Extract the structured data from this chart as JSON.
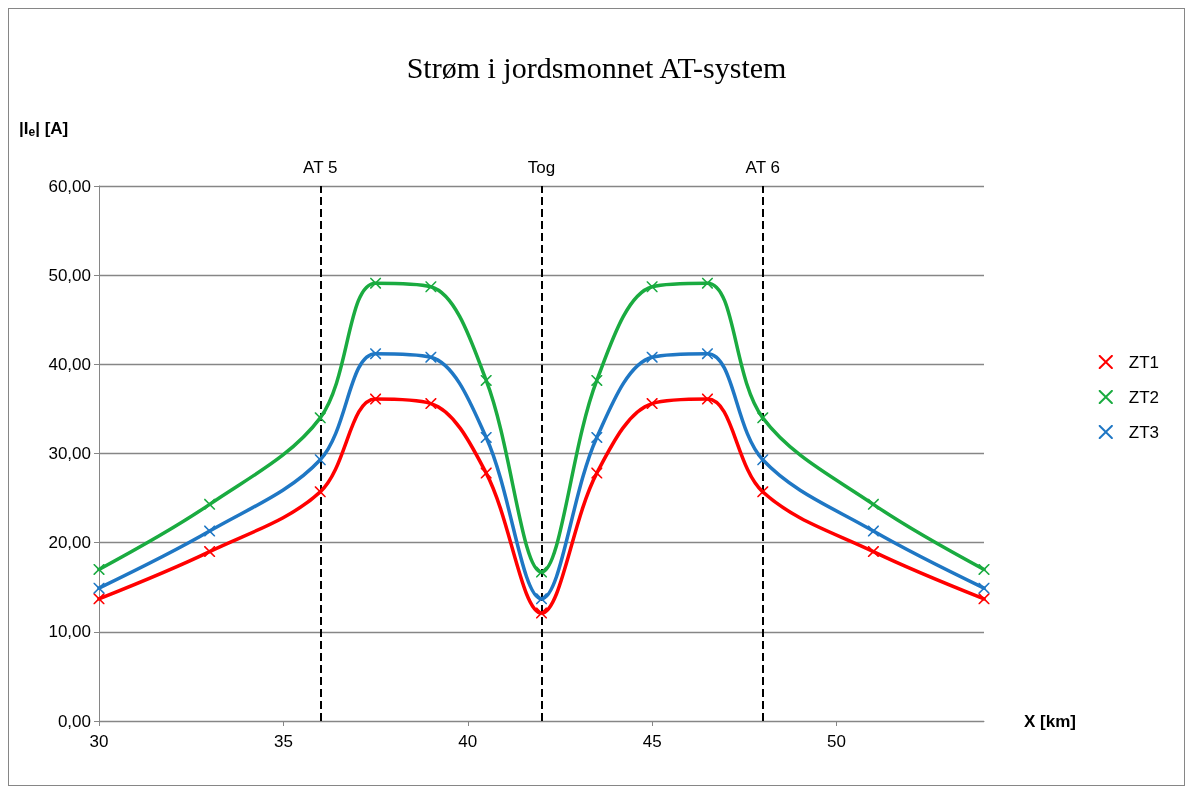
{
  "chart_data": {
    "type": "line",
    "title": "Strøm i jordsmonnet AT-system",
    "xlabel": "X [km]",
    "ylabel": "|I$_{e}$| [A]",
    "x": [
      30,
      33,
      36,
      37.5,
      39,
      40.5,
      42,
      43.5,
      45,
      46.5,
      48,
      51,
      54
    ],
    "series": [
      {
        "name": "ZT1",
        "color": "#ff0000",
        "values": [
          13.7,
          19.0,
          25.7,
          36.1,
          35.6,
          27.8,
          12.1,
          27.8,
          35.6,
          36.1,
          25.7,
          19.0,
          13.7
        ]
      },
      {
        "name": "ZT2",
        "color": "#1aab40",
        "values": [
          17.0,
          24.3,
          34.0,
          49.1,
          48.7,
          38.2,
          16.7,
          38.2,
          48.7,
          49.1,
          34.0,
          24.3,
          17.0
        ]
      },
      {
        "name": "ZT3",
        "color": "#1f77c4",
        "values": [
          14.9,
          21.3,
          29.3,
          41.2,
          40.8,
          31.8,
          13.7,
          31.8,
          40.8,
          41.2,
          29.3,
          21.3,
          14.9
        ]
      }
    ],
    "xlim": [
      30,
      54
    ],
    "xticks": [
      30,
      35,
      40,
      45,
      50
    ],
    "ylim": [
      0,
      60
    ],
    "yticks": [
      {
        "value": 0,
        "label": "0,00"
      },
      {
        "value": 10,
        "label": "10,00"
      },
      {
        "value": 20,
        "label": "20,00"
      },
      {
        "value": 30,
        "label": "30,00"
      },
      {
        "value": 40,
        "label": "40,00"
      },
      {
        "value": 50,
        "label": "50,00"
      },
      {
        "value": 60,
        "label": "60,00"
      }
    ],
    "ref_lines": [
      {
        "axis": "x",
        "value": 36,
        "label": "AT 5",
        "color": "#000000",
        "line_style": "dashed"
      },
      {
        "axis": "x",
        "value": 42,
        "label": "Tog",
        "color": "#000000",
        "line_style": "dashed"
      },
      {
        "axis": "x",
        "value": 48,
        "label": "AT 6",
        "color": "#000000",
        "line_style": "dashed"
      }
    ],
    "grid": "y",
    "legend": "right",
    "marker": "cross",
    "line_style": "solid"
  }
}
